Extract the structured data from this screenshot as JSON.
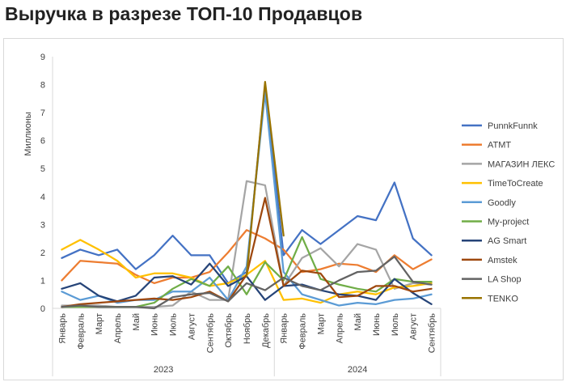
{
  "title": "Выручка в разрезе ТОП-10 Продавцов",
  "chart_data": {
    "type": "line",
    "title": "Выручка в разрезе ТОП-10 Продавцов",
    "ylabel": "Миллионы",
    "xlabel": "",
    "ylim": [
      0,
      9
    ],
    "yticks": [
      0,
      1,
      2,
      3,
      4,
      5,
      6,
      7,
      8,
      9
    ],
    "grid": false,
    "legend_position": "right",
    "years": [
      {
        "label": "2023",
        "start": 0,
        "end": 11
      },
      {
        "label": "2024",
        "start": 12,
        "end": 20
      }
    ],
    "categories": [
      "Январь",
      "Февраль",
      "Март",
      "Апрель",
      "Май",
      "Июнь",
      "Июль",
      "Август",
      "Сентябрь",
      "Октябрь",
      "Ноябрь",
      "Декабрь",
      "Январь",
      "Февраль",
      "Март",
      "Апрель",
      "Май",
      "Июнь",
      "Июль",
      "Август",
      "Сентябрь"
    ],
    "series": [
      {
        "name": "PunnkFunnk",
        "color": "#4472c4",
        "values": [
          1.8,
          2.1,
          1.9,
          2.1,
          1.4,
          1.9,
          2.6,
          1.9,
          1.9,
          0.9,
          1.3,
          8.0,
          1.9,
          2.8,
          2.3,
          2.8,
          3.3,
          3.15,
          4.5,
          2.5,
          1.9
        ]
      },
      {
        "name": "АТМТ",
        "color": "#ed7d31",
        "values": [
          1.0,
          1.7,
          1.65,
          1.6,
          1.2,
          0.9,
          1.1,
          1.1,
          1.3,
          2.0,
          2.8,
          2.5,
          2.1,
          1.3,
          1.4,
          1.6,
          1.55,
          1.3,
          1.9,
          1.4,
          1.75
        ]
      },
      {
        "name": "МАГАЗИН ЛЕКС",
        "color": "#a5a5a5",
        "values": [
          0.1,
          0.1,
          0.1,
          0.05,
          0.05,
          0.05,
          0.1,
          0.6,
          0.3,
          0.3,
          4.55,
          4.4,
          0.8,
          1.8,
          2.15,
          1.5,
          2.3,
          2.1,
          0.7,
          0.9,
          0.85
        ]
      },
      {
        "name": "TimeToCreate",
        "color": "#ffc000",
        "values": [
          2.1,
          2.45,
          2.1,
          1.7,
          1.1,
          1.25,
          1.25,
          1.1,
          0.8,
          0.9,
          1.2,
          1.7,
          0.3,
          0.35,
          0.2,
          0.5,
          0.6,
          0.5,
          0.75,
          0.8,
          0.9
        ]
      },
      {
        "name": "Goodly",
        "color": "#5b9bd5",
        "values": [
          0.6,
          0.3,
          0.45,
          0.2,
          0.3,
          0.3,
          0.6,
          0.6,
          1.1,
          0.3,
          1.5,
          7.7,
          1.3,
          0.5,
          0.3,
          0.1,
          0.2,
          0.15,
          0.3,
          0.35,
          0.5
        ]
      },
      {
        "name": "My-project",
        "color": "#70ad47",
        "values": [
          0.05,
          0.05,
          0.05,
          0.05,
          0.05,
          0.2,
          0.7,
          1.05,
          0.8,
          1.5,
          0.5,
          1.65,
          1.0,
          2.55,
          1.05,
          0.85,
          0.7,
          0.6,
          1.05,
          0.95,
          0.95
        ]
      },
      {
        "name": "AG Smart",
        "color": "#264478",
        "values": [
          0.7,
          0.9,
          0.45,
          0.25,
          0.45,
          1.1,
          1.15,
          0.85,
          1.6,
          0.8,
          1.15,
          0.3,
          0.8,
          0.85,
          0.65,
          0.5,
          0.45,
          0.3,
          1.05,
          0.55,
          0.15
        ]
      },
      {
        "name": "Amstek",
        "color": "#9e480e",
        "values": [
          0.05,
          0.15,
          0.2,
          0.25,
          0.3,
          0.35,
          0.3,
          0.4,
          0.6,
          0.25,
          1.2,
          3.95,
          0.8,
          1.35,
          1.25,
          0.4,
          0.45,
          0.8,
          0.8,
          0.6,
          0.7
        ]
      },
      {
        "name": "LA Shop",
        "color": "#636363",
        "values": [
          0.05,
          0.1,
          0.05,
          0.05,
          0.05,
          0.0,
          0.4,
          0.5,
          0.55,
          0.25,
          0.9,
          0.65,
          1.1,
          0.8,
          0.65,
          1.0,
          1.3,
          1.35,
          1.85,
          0.95,
          0.85
        ]
      },
      {
        "name": "TENKO",
        "color": "#997300",
        "values": [
          null,
          null,
          null,
          null,
          null,
          null,
          null,
          null,
          null,
          null,
          1.15,
          8.1,
          2.6,
          null,
          null,
          null,
          null,
          null,
          null,
          null,
          null
        ]
      }
    ]
  }
}
